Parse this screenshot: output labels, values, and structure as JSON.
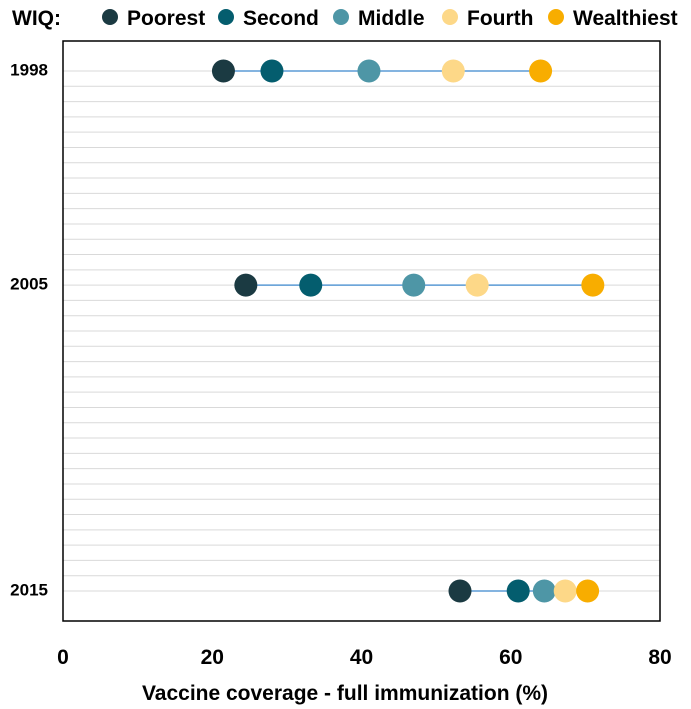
{
  "chart_data": {
    "type": "scatter",
    "subtype": "dumbbell",
    "legend_title": "WIQ:",
    "legend_position": "top",
    "xlabel": "Vaccine coverage - full immunization (%)",
    "xlim": [
      0,
      80
    ],
    "x_ticks": [
      0,
      20,
      40,
      60,
      80
    ],
    "y_axis": "year",
    "ylim": [
      1998,
      2015
    ],
    "y_ticks": [
      1998,
      2005,
      2015
    ],
    "grid": "horizontal",
    "connector_color": "#5b9bd5",
    "series": [
      {
        "name": "Poorest",
        "color": "#1b3a42",
        "values": [
          21.5,
          24.5,
          53.2
        ]
      },
      {
        "name": "Second",
        "color": "#045d6e",
        "values": [
          28.0,
          33.2,
          61.0
        ]
      },
      {
        "name": "Middle",
        "color": "#4e96a6",
        "values": [
          41.0,
          47.0,
          64.5
        ]
      },
      {
        "name": "Fourth",
        "color": "#fdd888",
        "values": [
          52.3,
          55.5,
          67.3
        ]
      },
      {
        "name": "Wealthiest",
        "color": "#f8ad00",
        "values": [
          64.0,
          71.0,
          70.3
        ]
      }
    ]
  }
}
